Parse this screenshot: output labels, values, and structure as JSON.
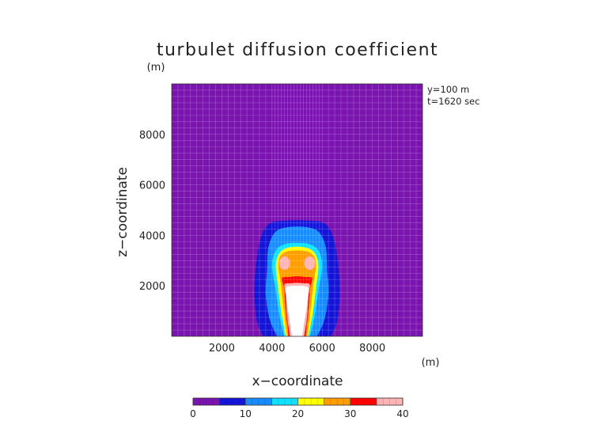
{
  "chart_data": {
    "type": "heatmap",
    "title": "turbulet diffusion coefficient",
    "xlabel": "x−coordinate",
    "ylabel": "z−coordinate",
    "x_unit": "(m)",
    "y_unit": "(m)",
    "xlim": [
      0,
      10000
    ],
    "ylim": [
      0,
      10000
    ],
    "x_ticks": [
      2000,
      4000,
      6000,
      8000
    ],
    "y_ticks": [
      2000,
      4000,
      6000,
      8000
    ],
    "x_tick_labels": [
      "2000",
      "4000",
      "6000",
      "8000"
    ],
    "y_tick_labels": [
      "2000",
      "4000",
      "6000",
      "8000"
    ],
    "annotations": [
      "y=100 m",
      "t=1620 sec"
    ],
    "grid": true,
    "colorbar": {
      "levels": [
        0,
        5,
        10,
        15,
        20,
        25,
        30,
        35,
        40
      ],
      "tick_values": [
        0,
        10,
        20,
        30,
        40
      ],
      "tick_labels": [
        "0",
        "10",
        "20",
        "30",
        "40"
      ],
      "colors": [
        "#7a13b0",
        "#1414d6",
        "#178bff",
        "#12e0ff",
        "#ffff00",
        "#ff9c00",
        "#ff0000",
        "#ffb3b3",
        "#ffffff"
      ]
    },
    "field": {
      "background_value": 2,
      "contour_bands": [
        {
          "level": 5,
          "outline": [
            [
              3650,
              0
            ],
            [
              3400,
              600
            ],
            [
              3300,
              1700
            ],
            [
              3350,
              2700
            ],
            [
              3500,
              3700
            ],
            [
              3700,
              4250
            ],
            [
              4000,
              4520
            ],
            [
              4500,
              4580
            ],
            [
              5000,
              4600
            ],
            [
              5500,
              4580
            ],
            [
              6000,
              4520
            ],
            [
              6300,
              4250
            ],
            [
              6500,
              3700
            ],
            [
              6650,
              2700
            ],
            [
              6700,
              1700
            ],
            [
              6600,
              600
            ],
            [
              6350,
              0
            ]
          ]
        },
        {
          "level": 10,
          "outline": [
            [
              4200,
              0
            ],
            [
              3900,
              700
            ],
            [
              3750,
              1700
            ],
            [
              3800,
              2600
            ],
            [
              3850,
              3500
            ],
            [
              4100,
              4100
            ],
            [
              4500,
              4300
            ],
            [
              5000,
              4350
            ],
            [
              5500,
              4300
            ],
            [
              5900,
              4100
            ],
            [
              6150,
              3500
            ],
            [
              6200,
              2600
            ],
            [
              6250,
              1700
            ],
            [
              6100,
              700
            ],
            [
              5800,
              0
            ]
          ]
        },
        {
          "level": 15,
          "outline": [
            [
              4480,
              0
            ],
            [
              4300,
              800
            ],
            [
              4150,
              1800
            ],
            [
              4000,
              2800
            ],
            [
              4150,
              3400
            ],
            [
              4500,
              3650
            ],
            [
              5000,
              3700
            ],
            [
              5500,
              3650
            ],
            [
              5850,
              3400
            ],
            [
              6000,
              2800
            ],
            [
              5850,
              1800
            ],
            [
              5700,
              800
            ],
            [
              5520,
              0
            ]
          ]
        },
        {
          "level": 20,
          "outline": [
            [
              4550,
              0
            ],
            [
              4380,
              900
            ],
            [
              4250,
              1900
            ],
            [
              4150,
              2800
            ],
            [
              4300,
              3300
            ],
            [
              4600,
              3500
            ],
            [
              5000,
              3550
            ],
            [
              5400,
              3500
            ],
            [
              5700,
              3300
            ],
            [
              5850,
              2800
            ],
            [
              5750,
              1900
            ],
            [
              5620,
              900
            ],
            [
              5450,
              0
            ]
          ]
        },
        {
          "level": 25,
          "outline": [
            [
              4600,
              0
            ],
            [
              4470,
              1000
            ],
            [
              4350,
              2050
            ],
            [
              4250,
              2900
            ],
            [
              4450,
              3300
            ],
            [
              5000,
              3400
            ],
            [
              5550,
              3300
            ],
            [
              5750,
              2900
            ],
            [
              5650,
              2050
            ],
            [
              5530,
              1000
            ],
            [
              5400,
              0
            ]
          ]
        },
        {
          "level": 30,
          "outline": [
            [
              4660,
              0
            ],
            [
              4550,
              1000
            ],
            [
              4480,
              1900
            ],
            [
              4400,
              2300
            ],
            [
              4700,
              2350
            ],
            [
              5000,
              2380
            ],
            [
              5300,
              2350
            ],
            [
              5600,
              2300
            ],
            [
              5520,
              1900
            ],
            [
              5450,
              1000
            ],
            [
              5340,
              0
            ]
          ]
        },
        {
          "level": 35,
          "outline": [
            [
              4720,
              0
            ],
            [
              4600,
              800
            ],
            [
              4550,
              1600
            ],
            [
              4500,
              2050
            ],
            [
              4750,
              2100
            ],
            [
              5000,
              2120
            ],
            [
              5250,
              2100
            ],
            [
              5500,
              2050
            ],
            [
              5450,
              1600
            ],
            [
              5400,
              800
            ],
            [
              5280,
              0
            ]
          ]
        },
        {
          "level": 40,
          "outline": [
            [
              4800,
              0
            ],
            [
              4700,
              650
            ],
            [
              4600,
              1300
            ],
            [
              4550,
              1900
            ],
            [
              4800,
              2000
            ],
            [
              5000,
              2000
            ],
            [
              5200,
              2000
            ],
            [
              5450,
              1900
            ],
            [
              5400,
              1300
            ],
            [
              5300,
              650
            ],
            [
              5200,
              0
            ]
          ]
        }
      ],
      "local_maxima": [
        {
          "x": 4500,
          "z": 2900,
          "value": 35
        },
        {
          "x": 5500,
          "z": 2900,
          "value": 35
        }
      ]
    }
  }
}
